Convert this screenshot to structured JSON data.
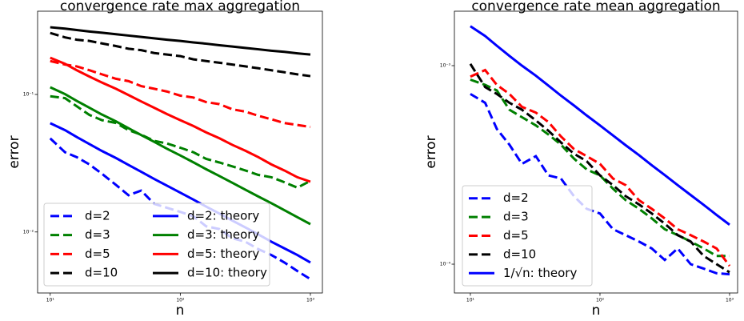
{
  "chart_data": [
    {
      "type": "line",
      "title": "convergence rate max aggregation",
      "xlabel": "n",
      "ylabel": "error",
      "xscale": "log",
      "yscale": "log",
      "xlim": [
        8,
        1237
      ],
      "ylim": [
        0.0036,
        0.403
      ],
      "xticks": [
        {
          "value": 10,
          "label": "10¹"
        },
        {
          "value": 100,
          "label": "10²"
        },
        {
          "value": 1000,
          "label": "10³"
        }
      ],
      "yticks": [
        {
          "value": 0.1,
          "label": "10⁻¹"
        },
        {
          "value": 0.01,
          "label": "10⁻²"
        }
      ],
      "legend": "lower left",
      "legend_columns": 2,
      "x": [
        10,
        13,
        16,
        20,
        25,
        32,
        40,
        50,
        63,
        79,
        100,
        126,
        158,
        200,
        251,
        316,
        398,
        501,
        631,
        794,
        1000
      ],
      "series": [
        {
          "name": "d=2",
          "color": "#0000ff",
          "dash": "dashed",
          "values": [
            0.0479,
            0.038,
            0.035,
            0.031,
            0.0265,
            0.022,
            0.0185,
            0.02,
            0.016,
            0.015,
            0.014,
            0.013,
            0.011,
            0.0105,
            0.009,
            0.0085,
            0.0075,
            0.0068,
            0.006,
            0.0052,
            0.00454
          ]
        },
        {
          "name": "d=3",
          "color": "#008000",
          "dash": "dashed",
          "values": [
            0.097,
            0.094,
            0.082,
            0.071,
            0.065,
            0.062,
            0.055,
            0.051,
            0.046,
            0.044,
            0.041,
            0.038,
            0.034,
            0.032,
            0.03,
            0.028,
            0.026,
            0.025,
            0.023,
            0.021,
            0.0235
          ]
        },
        {
          "name": "d=5",
          "color": "#ff0000",
          "dash": "dashed",
          "values": [
            0.175,
            0.165,
            0.16,
            0.15,
            0.14,
            0.13,
            0.125,
            0.115,
            0.11,
            0.105,
            0.098,
            0.095,
            0.088,
            0.085,
            0.078,
            0.075,
            0.07,
            0.066,
            0.062,
            0.06,
            0.058
          ]
        },
        {
          "name": "d=10",
          "color": "#000000",
          "dash": "dashed",
          "values": [
            0.28,
            0.26,
            0.25,
            0.245,
            0.235,
            0.225,
            0.215,
            0.21,
            0.2,
            0.195,
            0.19,
            0.18,
            0.175,
            0.17,
            0.165,
            0.16,
            0.155,
            0.15,
            0.145,
            0.14,
            0.136
          ]
        },
        {
          "name": "d=2: theory",
          "color": "#0000ff",
          "dash": "solid",
          "values": [
            0.0618,
            0.055,
            0.049,
            0.0436,
            0.0388,
            0.0345,
            0.0307,
            0.0274,
            0.0243,
            0.0217,
            0.0193,
            0.0172,
            0.0153,
            0.0136,
            0.0121,
            0.0108,
            0.0096,
            0.0085,
            0.0076,
            0.0068,
            0.006
          ]
        },
        {
          "name": "d=3: theory",
          "color": "#008000",
          "dash": "solid",
          "values": [
            0.1128,
            0.1006,
            0.0898,
            0.0801,
            0.0714,
            0.0637,
            0.0568,
            0.0507,
            0.0452,
            0.0403,
            0.036,
            0.0321,
            0.0286,
            0.0255,
            0.0228,
            0.0203,
            0.0181,
            0.0162,
            0.0144,
            0.0128,
            0.0114
          ]
        },
        {
          "name": "d=5: theory",
          "color": "#ff0000",
          "dash": "solid",
          "values": [
            0.185,
            0.167,
            0.15,
            0.135,
            0.122,
            0.11,
            0.099,
            0.089,
            0.08,
            0.072,
            0.065,
            0.059,
            0.053,
            0.048,
            0.043,
            0.039,
            0.035,
            0.031,
            0.028,
            0.025,
            0.0232
          ]
        },
        {
          "name": "d=10: theory",
          "color": "#000000",
          "dash": "solid",
          "values": [
            0.308,
            0.301,
            0.294,
            0.287,
            0.281,
            0.274,
            0.268,
            0.262,
            0.256,
            0.25,
            0.245,
            0.239,
            0.234,
            0.228,
            0.223,
            0.218,
            0.213,
            0.208,
            0.204,
            0.199,
            0.195
          ]
        }
      ]
    },
    {
      "type": "line",
      "title": "convergence rate mean aggregation",
      "xlabel": "n",
      "ylabel": "error",
      "xscale": "log",
      "yscale": "log",
      "xlim": [
        7.53,
        1153
      ],
      "ylim": [
        7.16e-05,
        0.00188
      ],
      "xticks": [
        {
          "value": 10,
          "label": "10¹"
        },
        {
          "value": 100,
          "label": "10²"
        },
        {
          "value": 1000,
          "label": "10³"
        }
      ],
      "yticks": [
        {
          "value": 0.001,
          "label": "10⁻³"
        },
        {
          "value": 0.0001,
          "label": "10⁻⁴"
        }
      ],
      "legend": "lower left",
      "legend_columns": 1,
      "x": [
        10,
        13,
        16,
        20,
        25,
        32,
        40,
        50,
        63,
        79,
        100,
        126,
        158,
        200,
        251,
        316,
        398,
        501,
        631,
        794,
        1000
      ],
      "series": [
        {
          "name": "d=2",
          "color": "#0000ff",
          "dash": "dashed",
          "values": [
            0.00072,
            0.00065,
            0.00048,
            0.0004,
            0.00032,
            0.00035,
            0.00028,
            0.00027,
            0.00022,
            0.00019,
            0.00018,
            0.00015,
            0.00014,
            0.00013,
            0.00012,
            0.000105,
            0.00012,
            0.0001,
            9.5e-05,
            9e-05,
            8.9e-05
          ]
        },
        {
          "name": "d=3",
          "color": "#008000",
          "dash": "dashed",
          "values": [
            0.00085,
            0.0008,
            0.00075,
            0.0006,
            0.00055,
            0.0005,
            0.00045,
            0.0004,
            0.00034,
            0.0003,
            0.00028,
            0.00024,
            0.00021,
            0.00019,
            0.00017,
            0.00015,
            0.00014,
            0.00013,
            0.00012,
            0.00011,
            0.00011
          ]
        },
        {
          "name": "d=5",
          "color": "#ff0000",
          "dash": "dashed",
          "values": [
            0.00088,
            0.00095,
            0.0008,
            0.00072,
            0.00062,
            0.00058,
            0.00052,
            0.00044,
            0.00038,
            0.00035,
            0.00032,
            0.00027,
            0.00025,
            0.00021,
            0.00019,
            0.00017,
            0.00015,
            0.00014,
            0.00013,
            0.00012,
            9.8e-05
          ]
        },
        {
          "name": "d=10",
          "color": "#000000",
          "dash": "dashed",
          "values": [
            0.00102,
            0.00078,
            0.00072,
            0.00065,
            0.0006,
            0.00053,
            0.00047,
            0.00041,
            0.00036,
            0.00033,
            0.00028,
            0.00025,
            0.00022,
            0.0002,
            0.00018,
            0.00016,
            0.00014,
            0.00013,
            0.00011,
            0.0001,
            9.1e-05
          ]
        },
        {
          "name": "1/√n: theory",
          "color": "#0000ff",
          "dash": "solid",
          "values": [
            0.00158,
            0.00141,
            0.00126,
            0.00112,
            0.001,
            0.00089,
            0.000793,
            0.000706,
            0.00063,
            0.000561,
            0.0005,
            0.000445,
            0.000397,
            0.000354,
            0.000315,
            0.000281,
            0.00025,
            0.000223,
            0.000199,
            0.000177,
            0.000158
          ]
        }
      ]
    }
  ]
}
